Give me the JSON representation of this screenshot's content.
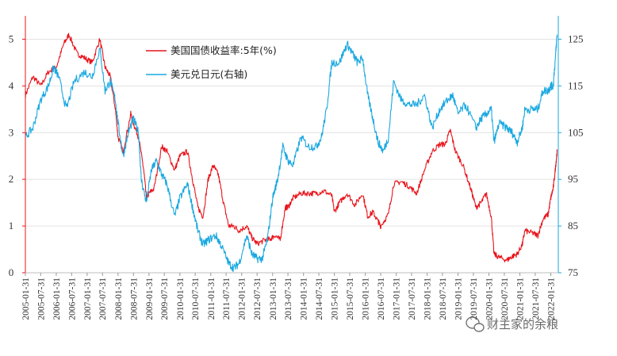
{
  "chart_data": {
    "type": "line",
    "title": "",
    "xlabel": "",
    "ylabel_left": "",
    "ylabel_right": "",
    "ylim_left": [
      0,
      5.5
    ],
    "ylim_right": [
      75,
      130
    ],
    "yticks_left": [
      "0",
      "1",
      "2",
      "3",
      "4",
      "5"
    ],
    "yticks_right": [
      "75",
      "85",
      "95",
      "105",
      "115",
      "125"
    ],
    "xlim": [
      "2005-01-31",
      "2022-04-30"
    ],
    "x_tick_labels": [
      "2005-01-31",
      "2005-07-31",
      "2006-01-31",
      "2006-07-31",
      "2007-01-31",
      "2007-07-31",
      "2008-01-31",
      "2008-07-31",
      "2009-01-31",
      "2009-07-31",
      "2010-01-31",
      "2010-07-31",
      "2011-01-31",
      "2011-07-31",
      "2012-01-31",
      "2012-07-31",
      "2013-01-31",
      "2013-07-31",
      "2014-01-31",
      "2014-07-31",
      "2015-01-31",
      "2015-07-31",
      "2016-01-31",
      "2016-07-31",
      "2017-01-31",
      "2017-07-31",
      "2018-01-31",
      "2018-07-31",
      "2019-01-31",
      "2019-07-31",
      "2020-01-31",
      "2020-07-31",
      "2021-01-31",
      "2021-07-31",
      "2022-01-31"
    ],
    "grid": "horizontal",
    "legend_position": "top-center",
    "series": [
      {
        "name": "美国国债收益率:5年(%)",
        "axis": "left",
        "color": "#e8141b",
        "points": [
          [
            "2005-01-31",
            3.8
          ],
          [
            "2005-04-30",
            4.2
          ],
          [
            "2005-07-31",
            4.0
          ],
          [
            "2005-10-31",
            4.3
          ],
          [
            "2006-01-31",
            4.4
          ],
          [
            "2006-04-30",
            4.9
          ],
          [
            "2006-06-30",
            5.1
          ],
          [
            "2006-09-30",
            4.7
          ],
          [
            "2006-12-31",
            4.6
          ],
          [
            "2007-03-31",
            4.5
          ],
          [
            "2007-06-30",
            5.0
          ],
          [
            "2007-08-31",
            4.4
          ],
          [
            "2007-10-31",
            4.2
          ],
          [
            "2007-12-31",
            3.5
          ],
          [
            "2008-01-31",
            2.9
          ],
          [
            "2008-03-31",
            2.6
          ],
          [
            "2008-06-30",
            3.4
          ],
          [
            "2008-07-31",
            3.2
          ],
          [
            "2008-09-30",
            2.9
          ],
          [
            "2008-11-30",
            2.2
          ],
          [
            "2008-12-31",
            1.6
          ],
          [
            "2009-01-31",
            1.7
          ],
          [
            "2009-03-31",
            1.8
          ],
          [
            "2009-06-30",
            2.7
          ],
          [
            "2009-08-31",
            2.6
          ],
          [
            "2009-11-30",
            2.2
          ],
          [
            "2010-01-31",
            2.5
          ],
          [
            "2010-04-30",
            2.6
          ],
          [
            "2010-06-30",
            2.0
          ],
          [
            "2010-08-31",
            1.4
          ],
          [
            "2010-10-31",
            1.2
          ],
          [
            "2010-12-31",
            2.0
          ],
          [
            "2011-02-28",
            2.3
          ],
          [
            "2011-04-30",
            2.1
          ],
          [
            "2011-06-30",
            1.5
          ],
          [
            "2011-08-31",
            1.0
          ],
          [
            "2011-10-31",
            1.0
          ],
          [
            "2011-12-31",
            0.9
          ],
          [
            "2012-03-31",
            1.0
          ],
          [
            "2012-05-31",
            0.75
          ],
          [
            "2012-07-31",
            0.62
          ],
          [
            "2012-10-31",
            0.7
          ],
          [
            "2012-12-31",
            0.72
          ],
          [
            "2013-02-28",
            0.8
          ],
          [
            "2013-04-30",
            0.7
          ],
          [
            "2013-06-30",
            1.4
          ],
          [
            "2013-07-31",
            1.4
          ],
          [
            "2013-09-30",
            1.6
          ],
          [
            "2013-12-31",
            1.7
          ],
          [
            "2014-03-31",
            1.7
          ],
          [
            "2014-06-30",
            1.7
          ],
          [
            "2014-09-30",
            1.75
          ],
          [
            "2014-12-31",
            1.65
          ],
          [
            "2015-01-31",
            1.3
          ],
          [
            "2015-03-31",
            1.5
          ],
          [
            "2015-06-30",
            1.7
          ],
          [
            "2015-09-30",
            1.45
          ],
          [
            "2015-12-31",
            1.7
          ],
          [
            "2016-02-28",
            1.2
          ],
          [
            "2016-04-30",
            1.3
          ],
          [
            "2016-06-30",
            1.1
          ],
          [
            "2016-07-31",
            1.0
          ],
          [
            "2016-10-31",
            1.25
          ],
          [
            "2016-12-31",
            1.9
          ],
          [
            "2017-03-31",
            1.95
          ],
          [
            "2017-06-30",
            1.85
          ],
          [
            "2017-09-30",
            1.7
          ],
          [
            "2017-12-31",
            2.2
          ],
          [
            "2018-03-31",
            2.6
          ],
          [
            "2018-06-30",
            2.75
          ],
          [
            "2018-08-31",
            2.75
          ],
          [
            "2018-10-31",
            3.05
          ],
          [
            "2018-12-31",
            2.6
          ],
          [
            "2019-03-31",
            2.3
          ],
          [
            "2019-06-30",
            1.8
          ],
          [
            "2019-08-31",
            1.4
          ],
          [
            "2019-10-31",
            1.5
          ],
          [
            "2019-12-31",
            1.7
          ],
          [
            "2020-02-28",
            1.2
          ],
          [
            "2020-03-31",
            0.4
          ],
          [
            "2020-05-31",
            0.33
          ],
          [
            "2020-08-31",
            0.27
          ],
          [
            "2020-10-31",
            0.35
          ],
          [
            "2020-12-31",
            0.4
          ],
          [
            "2021-02-28",
            0.6
          ],
          [
            "2021-03-31",
            0.9
          ],
          [
            "2021-06-30",
            0.85
          ],
          [
            "2021-08-31",
            0.8
          ],
          [
            "2021-10-31",
            1.15
          ],
          [
            "2021-12-31",
            1.25
          ],
          [
            "2022-01-31",
            1.6
          ],
          [
            "2022-02-28",
            1.8
          ],
          [
            "2022-03-31",
            2.3
          ],
          [
            "2022-04-15",
            2.6
          ]
        ]
      },
      {
        "name": "美元兑日元(右轴)",
        "axis": "right",
        "color": "#1aa8e0",
        "points": [
          [
            "2005-01-31",
            104
          ],
          [
            "2005-04-30",
            106
          ],
          [
            "2005-07-31",
            112
          ],
          [
            "2005-10-31",
            115
          ],
          [
            "2005-12-31",
            119
          ],
          [
            "2006-02-28",
            117
          ],
          [
            "2006-05-31",
            110
          ],
          [
            "2006-08-31",
            116
          ],
          [
            "2006-12-31",
            118
          ],
          [
            "2007-03-31",
            117
          ],
          [
            "2007-06-30",
            123
          ],
          [
            "2007-08-31",
            114
          ],
          [
            "2007-10-31",
            116
          ],
          [
            "2007-12-31",
            112
          ],
          [
            "2008-01-31",
            107
          ],
          [
            "2008-03-31",
            100
          ],
          [
            "2008-05-31",
            105
          ],
          [
            "2008-07-31",
            108
          ],
          [
            "2008-09-30",
            105
          ],
          [
            "2008-10-31",
            95
          ],
          [
            "2008-12-31",
            90
          ],
          [
            "2009-02-28",
            97
          ],
          [
            "2009-04-30",
            99
          ],
          [
            "2009-06-30",
            96
          ],
          [
            "2009-08-31",
            94
          ],
          [
            "2009-11-30",
            87
          ],
          [
            "2010-01-31",
            91
          ],
          [
            "2010-04-30",
            94
          ],
          [
            "2010-06-30",
            89
          ],
          [
            "2010-08-31",
            84
          ],
          [
            "2010-10-31",
            81
          ],
          [
            "2010-12-31",
            82
          ],
          [
            "2011-03-31",
            83
          ],
          [
            "2011-05-31",
            81
          ],
          [
            "2011-08-31",
            77
          ],
          [
            "2011-10-31",
            76
          ],
          [
            "2011-12-31",
            77
          ],
          [
            "2012-03-31",
            83
          ],
          [
            "2012-05-31",
            79
          ],
          [
            "2012-07-31",
            78
          ],
          [
            "2012-09-30",
            78
          ],
          [
            "2012-11-30",
            82
          ],
          [
            "2013-01-31",
            91
          ],
          [
            "2013-03-31",
            95
          ],
          [
            "2013-05-31",
            102
          ],
          [
            "2013-07-31",
            99
          ],
          [
            "2013-09-30",
            98
          ],
          [
            "2013-12-31",
            104
          ],
          [
            "2014-03-31",
            102
          ],
          [
            "2014-06-30",
            102
          ],
          [
            "2014-08-31",
            104
          ],
          [
            "2014-10-31",
            110
          ],
          [
            "2014-12-31",
            120
          ],
          [
            "2015-03-31",
            120
          ],
          [
            "2015-06-30",
            124
          ],
          [
            "2015-08-31",
            122
          ],
          [
            "2015-10-31",
            120
          ],
          [
            "2015-12-31",
            121
          ],
          [
            "2016-02-28",
            113
          ],
          [
            "2016-04-30",
            108
          ],
          [
            "2016-06-30",
            103
          ],
          [
            "2016-08-31",
            101
          ],
          [
            "2016-10-31",
            104
          ],
          [
            "2016-12-31",
            116
          ],
          [
            "2017-03-31",
            112
          ],
          [
            "2017-06-30",
            111
          ],
          [
            "2017-09-30",
            111
          ],
          [
            "2017-12-31",
            113
          ],
          [
            "2018-03-31",
            106
          ],
          [
            "2018-06-30",
            110
          ],
          [
            "2018-09-30",
            112
          ],
          [
            "2018-11-30",
            113
          ],
          [
            "2019-01-31",
            109
          ],
          [
            "2019-04-30",
            111
          ],
          [
            "2019-08-31",
            106
          ],
          [
            "2019-10-31",
            108
          ],
          [
            "2019-12-31",
            109
          ],
          [
            "2020-02-28",
            110
          ],
          [
            "2020-03-31",
            103
          ],
          [
            "2020-05-31",
            107
          ],
          [
            "2020-08-31",
            106
          ],
          [
            "2020-10-31",
            105
          ],
          [
            "2020-12-31",
            103
          ],
          [
            "2021-02-28",
            106
          ],
          [
            "2021-03-31",
            110
          ],
          [
            "2021-06-30",
            110
          ],
          [
            "2021-08-31",
            110
          ],
          [
            "2021-10-31",
            114
          ],
          [
            "2021-12-31",
            114
          ],
          [
            "2022-01-31",
            115
          ],
          [
            "2022-02-28",
            115
          ],
          [
            "2022-03-31",
            122
          ],
          [
            "2022-04-15",
            126
          ]
        ]
      }
    ]
  },
  "watermark": {
    "icon": "wechat-icon",
    "text": "财主家的余粮"
  }
}
